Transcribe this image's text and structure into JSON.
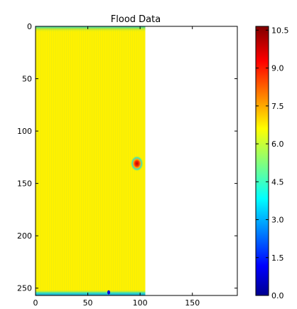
{
  "chart_data": {
    "type": "heatmap",
    "title": "Flood Data",
    "xlabel": "",
    "ylabel": "",
    "grid": false,
    "colormap": "jet",
    "xlim": [
      0,
      193
    ],
    "ylim": [
      257,
      0
    ],
    "x_ticks": [
      0,
      50,
      100,
      150
    ],
    "y_ticks": [
      0,
      50,
      100,
      150,
      200,
      250
    ],
    "data_extent_x": [
      0,
      105
    ],
    "data_extent_y": [
      0,
      257
    ],
    "background_value": 6.8,
    "edge_features": [
      {
        "edge": "top",
        "value": 5.2
      },
      {
        "edge": "bottom",
        "value": 4.8
      }
    ],
    "peaks": [
      {
        "x": 97,
        "y": 131,
        "value": 10.5
      },
      {
        "x": 70,
        "y": 254,
        "value": 1.0
      }
    ],
    "colorbar": {
      "min": 0.0,
      "max": 10.65,
      "ticks": [
        "0.0",
        "1.5",
        "3.0",
        "4.5",
        "6.0",
        "7.5",
        "9.0",
        "10.5"
      ],
      "tick_values": [
        0,
        1.5,
        3.0,
        4.5,
        6.0,
        7.5,
        9.0,
        10.5
      ]
    }
  }
}
